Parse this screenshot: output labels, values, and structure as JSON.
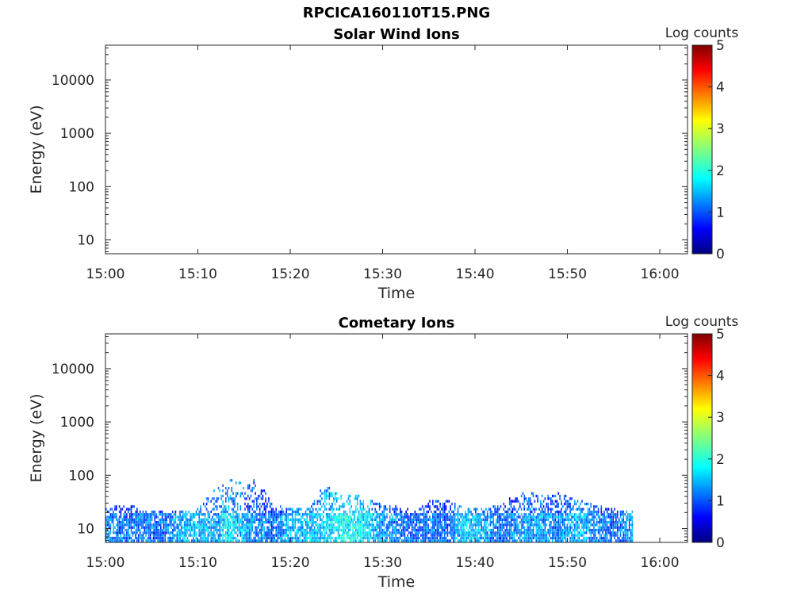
{
  "figure_title": "RPCICA160110T15.PNG",
  "chart_data": [
    {
      "type": "heatmap",
      "title": "Solar Wind Ions",
      "xlabel": "Time",
      "ylabel": "Energy (eV)",
      "x_ticks": [
        "15:00",
        "15:10",
        "15:20",
        "15:30",
        "15:40",
        "15:50",
        "16:00"
      ],
      "x_range": [
        "15:00",
        "16:03"
      ],
      "y_scale": "log",
      "y_ticks": [
        "10",
        "100",
        "1000",
        "10000"
      ],
      "y_range": [
        5.5,
        45000
      ],
      "colorbar": {
        "label": "Log counts",
        "ticks": [
          "0",
          "1",
          "2",
          "3",
          "4",
          "5"
        ],
        "range": [
          0,
          5
        ],
        "colormap": "jet"
      },
      "columns": []
    },
    {
      "type": "heatmap",
      "title": "Cometary Ions",
      "xlabel": "Time",
      "ylabel": "Energy (eV)",
      "x_ticks": [
        "15:00",
        "15:10",
        "15:20",
        "15:30",
        "15:40",
        "15:50",
        "16:00"
      ],
      "x_range": [
        "15:00",
        "16:03"
      ],
      "y_scale": "log",
      "y_ticks": [
        "10",
        "100",
        "1000",
        "10000"
      ],
      "y_range": [
        5.5,
        45000
      ],
      "colorbar": {
        "label": "Log counts",
        "ticks": [
          "0",
          "1",
          "2",
          "3",
          "4",
          "5"
        ],
        "range": [
          0,
          5
        ],
        "colormap": "jet"
      },
      "data_time_range": [
        "15:00",
        "15:57"
      ],
      "columns": [
        {
          "t": "15:00",
          "emax": 20,
          "level": 1.2
        },
        {
          "t": "15:02",
          "emax": 25,
          "level": 1.0
        },
        {
          "t": "15:04",
          "emax": 20,
          "level": 1.1
        },
        {
          "t": "15:06",
          "emax": 18,
          "level": 1.0
        },
        {
          "t": "15:08",
          "emax": 18,
          "level": 1.3
        },
        {
          "t": "15:10",
          "emax": 20,
          "level": 1.5
        },
        {
          "t": "15:12",
          "emax": 50,
          "level": 1.2
        },
        {
          "t": "15:13",
          "emax": 75,
          "level": 1.7
        },
        {
          "t": "15:15",
          "emax": 60,
          "level": 1.3
        },
        {
          "t": "15:16",
          "emax": 70,
          "level": 1.2
        },
        {
          "t": "15:18",
          "emax": 25,
          "level": 1.0
        },
        {
          "t": "15:20",
          "emax": 20,
          "level": 1.4
        },
        {
          "t": "15:22",
          "emax": 20,
          "level": 1.4
        },
        {
          "t": "15:24",
          "emax": 60,
          "level": 1.6
        },
        {
          "t": "15:26",
          "emax": 35,
          "level": 1.8
        },
        {
          "t": "15:28",
          "emax": 35,
          "level": 1.7
        },
        {
          "t": "15:30",
          "emax": 25,
          "level": 1.2
        },
        {
          "t": "15:33",
          "emax": 20,
          "level": 1.0
        },
        {
          "t": "15:35",
          "emax": 30,
          "level": 1.1
        },
        {
          "t": "15:37",
          "emax": 30,
          "level": 1.0
        },
        {
          "t": "15:39",
          "emax": 20,
          "level": 1.6
        },
        {
          "t": "15:41",
          "emax": 20,
          "level": 1.3
        },
        {
          "t": "15:43",
          "emax": 25,
          "level": 1.0
        },
        {
          "t": "15:45",
          "emax": 50,
          "level": 1.2
        },
        {
          "t": "15:47",
          "emax": 35,
          "level": 1.3
        },
        {
          "t": "15:49",
          "emax": 40,
          "level": 1.1
        },
        {
          "t": "15:51",
          "emax": 30,
          "level": 1.4
        },
        {
          "t": "15:53",
          "emax": 25,
          "level": 1.2
        },
        {
          "t": "15:55",
          "emax": 20,
          "level": 1.0
        },
        {
          "t": "15:57",
          "emax": 18,
          "level": 1.3
        }
      ]
    }
  ]
}
